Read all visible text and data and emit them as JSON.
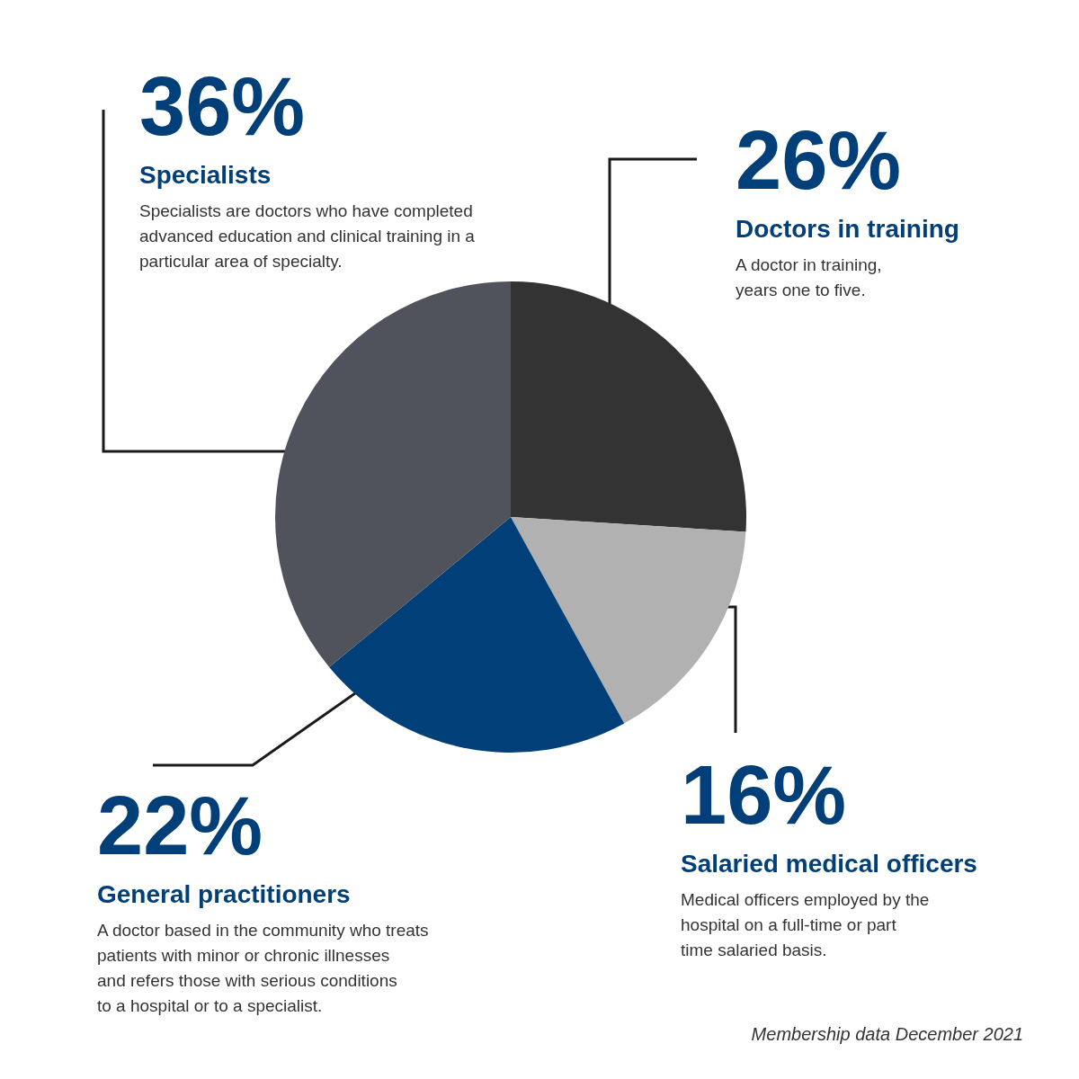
{
  "chart_data": {
    "type": "pie",
    "categories": [
      "Doctors in training",
      "Salaried medical officers",
      "General practitioners",
      "Specialists"
    ],
    "values": [
      26,
      16,
      22,
      36
    ],
    "value_labels": [
      "26%",
      "16%",
      "22%",
      "36%"
    ],
    "colors": [
      "#333333",
      "#b1b1b1",
      "#003f78",
      "#50535b"
    ],
    "annotations": [
      "A doctor in training, years one to five.",
      "Medical officers employed by the hospital on a full-time or part time salaried basis.",
      "A doctor based in the community who treats patients with minor or chronic illnesses and refers those with serious conditions to a hospital or to a specialist.",
      "Specialists are doctors who have completed advanced education and clinical training in a particular area of specialty.",
      "Membership data December 2021"
    ]
  }
}
